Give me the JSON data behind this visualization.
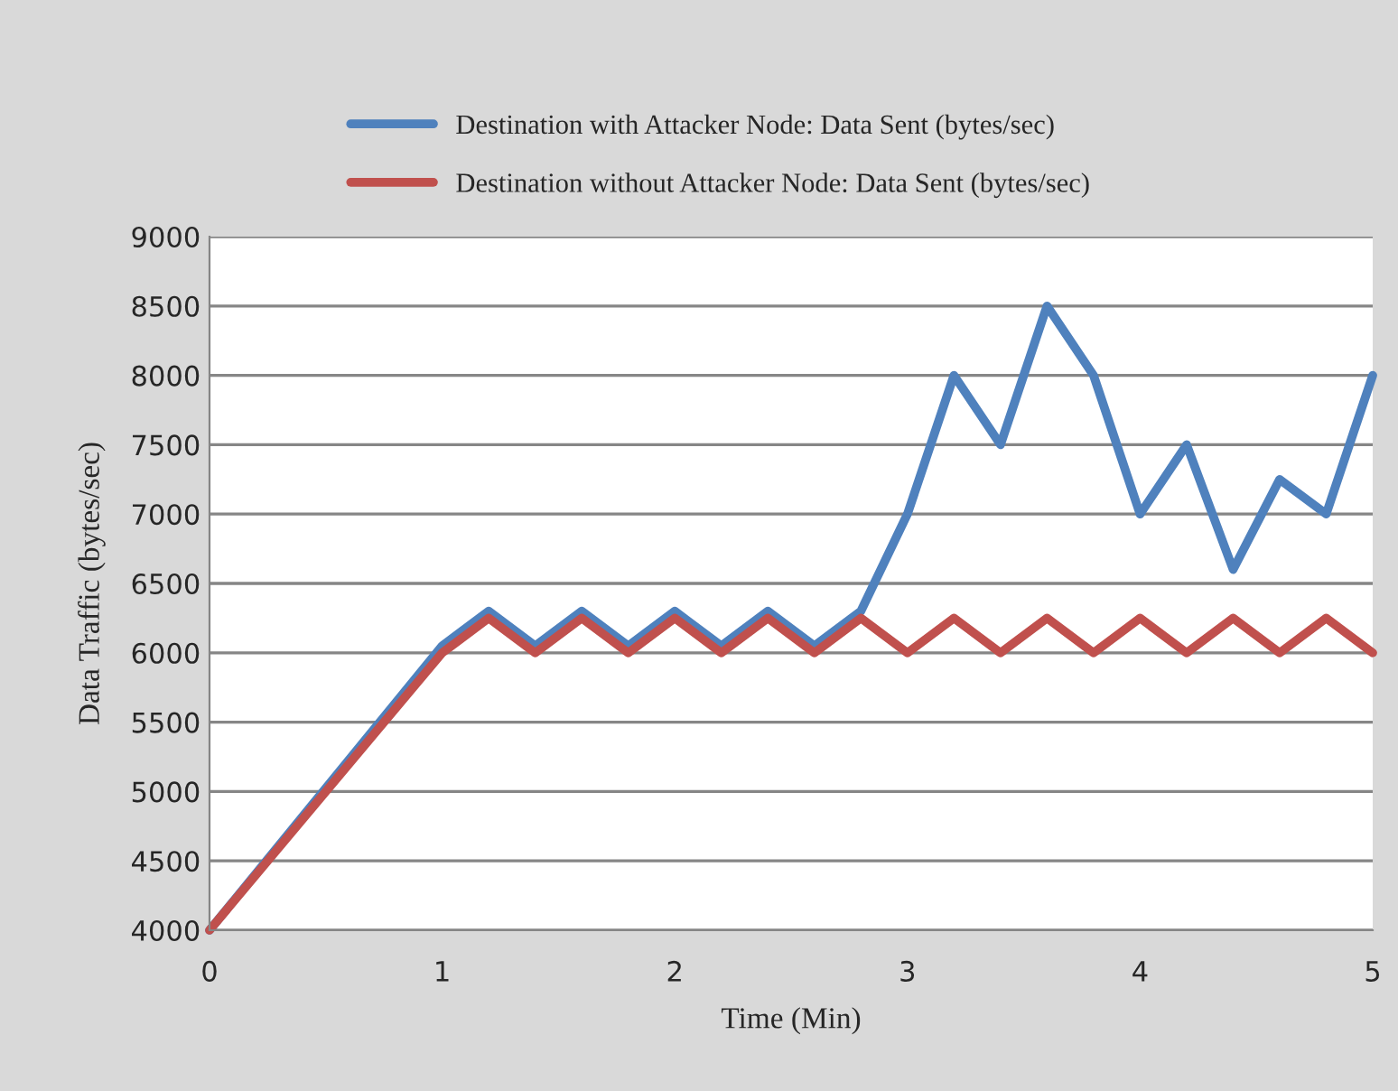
{
  "chart_data": {
    "type": "line",
    "x": [
      0,
      1,
      1.2,
      1.4,
      1.6,
      1.8,
      2,
      2.2,
      2.4,
      2.6,
      2.8,
      3,
      3.2,
      3.4,
      3.6,
      3.8,
      4,
      4.2,
      4.4,
      4.6,
      4.8,
      5
    ],
    "series": [
      {
        "name": "Destination with Attacker Node: Data Sent (bytes/sec)",
        "color": "#4f81bd",
        "values": [
          4000,
          6050,
          6300,
          6050,
          6300,
          6050,
          6300,
          6050,
          6300,
          6050,
          6300,
          7000,
          8000,
          7500,
          8500,
          8000,
          7000,
          7500,
          6600,
          7250,
          7000,
          8000
        ]
      },
      {
        "name": "Destination without Attacker Node: Data Sent (bytes/sec)",
        "color": "#c0504d",
        "values": [
          4000,
          6000,
          6250,
          6000,
          6250,
          6000,
          6250,
          6000,
          6250,
          6000,
          6250,
          6000,
          6250,
          6000,
          6250,
          6000,
          6250,
          6000,
          6250,
          6000,
          6250,
          6000
        ]
      }
    ],
    "xlabel": "Time (Min)",
    "ylabel": "Data Traffic (bytes/sec)",
    "xlim": [
      0,
      5
    ],
    "xticks": [
      0,
      1,
      2,
      3,
      4,
      5
    ],
    "ylim": [
      4000,
      9000
    ],
    "yticks": [
      4000,
      4500,
      5000,
      5500,
      6000,
      6500,
      7000,
      7500,
      8000,
      8500,
      9000
    ],
    "grid": "y",
    "legend": "top",
    "marker": "none",
    "line_style": "solid"
  }
}
